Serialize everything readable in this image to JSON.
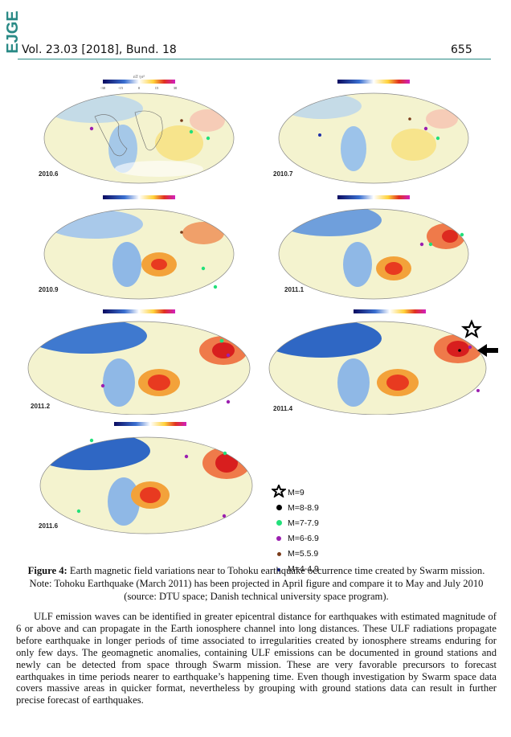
{
  "header": {
    "logo_text": "EJGE",
    "volume": "Vol. 23.03 [2018], Bund. 18",
    "page_number": "655",
    "accent_color": "#2a8a86"
  },
  "figure": {
    "colorbar": {
      "unit": "nT /yr²",
      "ticks": [
        "-30",
        "-15",
        "0",
        "15",
        "30"
      ]
    },
    "panels": [
      {
        "label": "2010.6"
      },
      {
        "label": "2010.7"
      },
      {
        "label": "2010.9"
      },
      {
        "label": "2011.1"
      },
      {
        "label": "2011.2"
      },
      {
        "label": "2011.4"
      },
      {
        "label": "2011.6"
      }
    ],
    "legend": [
      {
        "label": "M=9",
        "symbol": "star",
        "color": "#000000"
      },
      {
        "label": "M=8-8.9",
        "symbol": "dot",
        "color": "#000000"
      },
      {
        "label": "M=7-7.9",
        "symbol": "dot",
        "color": "#22e07a"
      },
      {
        "label": "M=6-6.9",
        "symbol": "dot",
        "color": "#9b1fb0"
      },
      {
        "label": "M=5.5.9",
        "symbol": "dot",
        "color": "#7a3b1a"
      },
      {
        "label": "M=4-4.9",
        "symbol": "dot",
        "color": "#1f2fa8"
      }
    ]
  },
  "caption": {
    "lead": "Figure 4:",
    "text": " Earth magnetic field variations near to Tohoku earthquake occurrence time created by Swarm mission. Note: Tohoku Earthquake (March 2011) has been projected in April figure and compare it to May and July 2010 (source: DTU space; Danish technical university space program)."
  },
  "body_text": "ULF emission waves can be identified in greater epicentral distance for earthquakes with estimated magnitude of 6 or above and can propagate in the Earth ionosphere channel into long distances. These ULF radiations propagate before earthquake in longer periods of time associated to irregularities created by ionosphere streams enduring for only few days. The geomagnetic anomalies, containing ULF emissions can be documented in ground stations and newly can be detected from space through Swarm mission. These are very favorable precursors to forecast earthquakes in time periods nearer to earthquake’s happening time. Even though investigation by Swarm space data covers massive areas in quicker format, nevertheless by grouping with ground stations data can result in further precise forecast of earthquakes."
}
